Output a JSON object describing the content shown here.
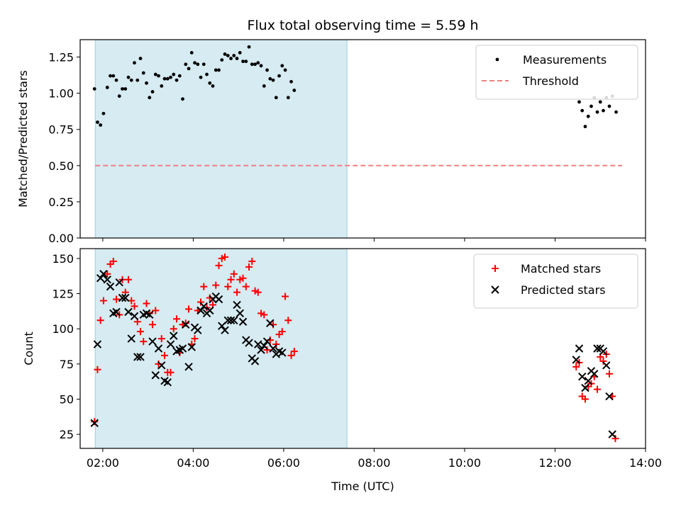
{
  "chart_data": [
    {
      "panel": "top",
      "type": "scatter",
      "title": "Flux total observing time = 5.59 h",
      "ylabel": "Matched/Predicted stars",
      "xlabel": "",
      "ylim": [
        0,
        1.37
      ],
      "xlim": [
        "01:30",
        "14:00"
      ],
      "yticks": [
        "0.00",
        "0.25",
        "0.50",
        "0.75",
        "1.00",
        "1.25"
      ],
      "grid": false,
      "legend": "top-right",
      "shaded_interval": [
        "01:50",
        "07:24"
      ],
      "threshold": {
        "name": "Threshold",
        "value": 0.5,
        "x_range": [
          "01:50",
          "13:29"
        ],
        "color": "#f08080",
        "style": "dashed"
      },
      "series": [
        {
          "name": "Measurements",
          "color": "#000000",
          "points": [
            [
              "01:49",
              1.03
            ],
            [
              "01:53",
              0.8
            ],
            [
              "01:57",
              0.78
            ],
            [
              "02:01",
              0.86
            ],
            [
              "02:06",
              1.04
            ],
            [
              "02:10",
              1.12
            ],
            [
              "02:14",
              1.12
            ],
            [
              "02:18",
              1.09
            ],
            [
              "02:22",
              0.98
            ],
            [
              "02:26",
              1.03
            ],
            [
              "02:30",
              1.03
            ],
            [
              "02:34",
              1.11
            ],
            [
              "02:38",
              1.09
            ],
            [
              "02:42",
              1.21
            ],
            [
              "02:46",
              1.09
            ],
            [
              "02:50",
              1.24
            ],
            [
              "02:54",
              1.14
            ],
            [
              "02:58",
              1.07
            ],
            [
              "03:02",
              0.97
            ],
            [
              "03:06",
              1.01
            ],
            [
              "03:10",
              1.13
            ],
            [
              "03:14",
              1.12
            ],
            [
              "03:18",
              1.05
            ],
            [
              "03:22",
              1.1
            ],
            [
              "03:26",
              1.1
            ],
            [
              "03:30",
              1.11
            ],
            [
              "03:34",
              1.13
            ],
            [
              "03:38",
              1.09
            ],
            [
              "03:42",
              1.12
            ],
            [
              "03:46",
              0.96
            ],
            [
              "03:50",
              1.2
            ],
            [
              "03:54",
              1.17
            ],
            [
              "03:58",
              1.28
            ],
            [
              "04:02",
              1.21
            ],
            [
              "04:06",
              1.2
            ],
            [
              "04:10",
              1.11
            ],
            [
              "04:14",
              1.2
            ],
            [
              "04:18",
              1.13
            ],
            [
              "04:22",
              1.07
            ],
            [
              "04:26",
              1.05
            ],
            [
              "04:30",
              1.16
            ],
            [
              "04:34",
              1.16
            ],
            [
              "04:38",
              1.23
            ],
            [
              "04:42",
              1.27
            ],
            [
              "04:46",
              1.26
            ],
            [
              "04:50",
              1.24
            ],
            [
              "04:54",
              1.26
            ],
            [
              "04:58",
              1.24
            ],
            [
              "05:02",
              1.28
            ],
            [
              "05:06",
              1.22
            ],
            [
              "05:10",
              1.22
            ],
            [
              "05:14",
              1.32
            ],
            [
              "05:18",
              1.2
            ],
            [
              "05:22",
              1.2
            ],
            [
              "05:26",
              1.21
            ],
            [
              "05:30",
              1.19
            ],
            [
              "05:34",
              1.05
            ],
            [
              "05:38",
              1.16
            ],
            [
              "05:42",
              1.1
            ],
            [
              "05:46",
              1.09
            ],
            [
              "05:50",
              0.97
            ],
            [
              "05:54",
              1.12
            ],
            [
              "05:58",
              1.19
            ],
            [
              "06:02",
              1.16
            ],
            [
              "06:06",
              0.97
            ],
            [
              "06:10",
              1.08
            ],
            [
              "06:14",
              1.02
            ],
            [
              "12:32",
              0.94
            ],
            [
              "12:36",
              0.88
            ],
            [
              "12:40",
              0.77
            ],
            [
              "12:44",
              0.84
            ],
            [
              "12:48",
              0.91
            ],
            [
              "12:52",
              0.97
            ],
            [
              "12:56",
              0.87
            ],
            [
              "13:00",
              0.94
            ],
            [
              "13:04",
              0.88
            ],
            [
              "13:08",
              0.97
            ],
            [
              "13:12",
              0.91
            ],
            [
              "13:16",
              0.98
            ],
            [
              "13:21",
              0.87
            ]
          ]
        }
      ]
    },
    {
      "panel": "bottom",
      "type": "scatter",
      "title": "",
      "ylabel": "Count",
      "xlabel": "Time (UTC)",
      "ylim": [
        15,
        157
      ],
      "xlim": [
        "01:30",
        "14:00"
      ],
      "yticks": [
        "25",
        "50",
        "75",
        "100",
        "125",
        "150"
      ],
      "xticks": [
        "02:00",
        "04:00",
        "06:00",
        "08:00",
        "10:00",
        "12:00",
        "14:00"
      ],
      "grid": false,
      "legend": "top-right",
      "shaded_interval": [
        "01:50",
        "07:24"
      ],
      "series": [
        {
          "name": "Matched stars",
          "marker": "plus",
          "color": "#ff0000",
          "points": [
            [
              "01:49",
              34
            ],
            [
              "01:53",
              71
            ],
            [
              "01:57",
              106
            ],
            [
              "02:01",
              120
            ],
            [
              "02:06",
              139
            ],
            [
              "02:10",
              146
            ],
            [
              "02:14",
              148
            ],
            [
              "02:18",
              121
            ],
            [
              "02:22",
              110
            ],
            [
              "02:26",
              135
            ],
            [
              "02:30",
              126
            ],
            [
              "02:34",
              135
            ],
            [
              "02:38",
              120
            ],
            [
              "02:42",
              116
            ],
            [
              "02:46",
              105
            ],
            [
              "02:50",
              98
            ],
            [
              "02:54",
              91
            ],
            [
              "02:58",
              118
            ],
            [
              "03:02",
              111
            ],
            [
              "03:06",
              103
            ],
            [
              "03:10",
              113
            ],
            [
              "03:14",
              75
            ],
            [
              "03:18",
              93
            ],
            [
              "03:22",
              81
            ],
            [
              "03:26",
              69
            ],
            [
              "03:30",
              69
            ],
            [
              "03:34",
              100
            ],
            [
              "03:38",
              107
            ],
            [
              "03:42",
              83
            ],
            [
              "03:46",
              103
            ],
            [
              "03:50",
              104
            ],
            [
              "03:54",
              114
            ],
            [
              "03:58",
              89
            ],
            [
              "04:02",
              93
            ],
            [
              "04:06",
              113
            ],
            [
              "04:10",
              119
            ],
            [
              "04:14",
              130
            ],
            [
              "04:18",
              115
            ],
            [
              "04:22",
              122
            ],
            [
              "04:26",
              117
            ],
            [
              "04:30",
              131
            ],
            [
              "04:34",
              145
            ],
            [
              "04:38",
              150
            ],
            [
              "04:42",
              151
            ],
            [
              "04:46",
              130
            ],
            [
              "04:50",
              135
            ],
            [
              "04:54",
              139
            ],
            [
              "04:58",
              126
            ],
            [
              "05:02",
              135
            ],
            [
              "05:06",
              136
            ],
            [
              "05:10",
              130
            ],
            [
              "05:14",
              144
            ],
            [
              "05:18",
              148
            ],
            [
              "05:22",
              127
            ],
            [
              "05:26",
              126
            ],
            [
              "05:30",
              111
            ],
            [
              "05:34",
              110
            ],
            [
              "05:38",
              85
            ],
            [
              "05:42",
              92
            ],
            [
              "05:46",
              103
            ],
            [
              "05:50",
              89
            ],
            [
              "05:54",
              96
            ],
            [
              "05:58",
              98
            ],
            [
              "06:02",
              123
            ],
            [
              "06:06",
              106
            ],
            [
              "06:10",
              81
            ],
            [
              "06:14",
              84
            ],
            [
              "12:28",
              73
            ],
            [
              "12:32",
              76
            ],
            [
              "12:36",
              52
            ],
            [
              "12:40",
              50
            ],
            [
              "12:44",
              59
            ],
            [
              "12:48",
              61
            ],
            [
              "12:52",
              66
            ],
            [
              "12:56",
              57
            ],
            [
              "13:00",
              80
            ],
            [
              "13:04",
              77
            ],
            [
              "13:08",
              82
            ],
            [
              "13:12",
              68
            ],
            [
              "13:16",
              52
            ],
            [
              "13:20",
              22
            ]
          ]
        },
        {
          "name": "Predicted stars",
          "marker": "x",
          "color": "#000000",
          "points": [
            [
              "01:49",
              33
            ],
            [
              "01:53",
              89
            ],
            [
              "01:57",
              136
            ],
            [
              "02:01",
              139
            ],
            [
              "02:06",
              135
            ],
            [
              "02:10",
              130
            ],
            [
              "02:14",
              111
            ],
            [
              "02:18",
              112
            ],
            [
              "02:22",
              133
            ],
            [
              "02:26",
              122
            ],
            [
              "02:30",
              122
            ],
            [
              "02:34",
              112
            ],
            [
              "02:38",
              93
            ],
            [
              "02:42",
              109
            ],
            [
              "02:46",
              80
            ],
            [
              "02:50",
              80
            ],
            [
              "02:54",
              110
            ],
            [
              "02:58",
              111
            ],
            [
              "03:02",
              110
            ],
            [
              "03:06",
              91
            ],
            [
              "03:10",
              67
            ],
            [
              "03:14",
              86
            ],
            [
              "03:18",
              74
            ],
            [
              "03:22",
              63
            ],
            [
              "03:26",
              62
            ],
            [
              "03:30",
              89
            ],
            [
              "03:34",
              95
            ],
            [
              "03:38",
              84
            ],
            [
              "03:42",
              85
            ],
            [
              "03:46",
              86
            ],
            [
              "03:50",
              103
            ],
            [
              "03:54",
              73
            ],
            [
              "03:58",
              87
            ],
            [
              "04:02",
              101
            ],
            [
              "04:06",
              99
            ],
            [
              "04:10",
              113
            ],
            [
              "04:14",
              116
            ],
            [
              "04:18",
              111
            ],
            [
              "04:22",
              113
            ],
            [
              "04:26",
              121
            ],
            [
              "04:30",
              123
            ],
            [
              "04:34",
              121
            ],
            [
              "04:38",
              102
            ],
            [
              "04:42",
              99
            ],
            [
              "04:46",
              106
            ],
            [
              "04:50",
              106
            ],
            [
              "04:54",
              106
            ],
            [
              "04:58",
              117
            ],
            [
              "05:02",
              111
            ],
            [
              "05:06",
              105
            ],
            [
              "05:10",
              92
            ],
            [
              "05:14",
              90
            ],
            [
              "05:18",
              79
            ],
            [
              "05:22",
              77
            ],
            [
              "05:26",
              89
            ],
            [
              "05:30",
              85
            ],
            [
              "05:34",
              88
            ],
            [
              "05:38",
              91
            ],
            [
              "05:42",
              104
            ],
            [
              "05:46",
              86
            ],
            [
              "05:50",
              82
            ],
            [
              "05:54",
              84
            ],
            [
              "05:58",
              83
            ],
            [
              "12:28",
              78
            ],
            [
              "12:32",
              86
            ],
            [
              "12:36",
              66
            ],
            [
              "12:40",
              58
            ],
            [
              "12:44",
              63
            ],
            [
              "12:48",
              70
            ],
            [
              "12:52",
              68
            ],
            [
              "12:56",
              86
            ],
            [
              "13:00",
              86
            ],
            [
              "13:04",
              84
            ],
            [
              "13:08",
              74
            ],
            [
              "13:12",
              52
            ],
            [
              "13:16",
              25
            ]
          ]
        }
      ]
    }
  ]
}
